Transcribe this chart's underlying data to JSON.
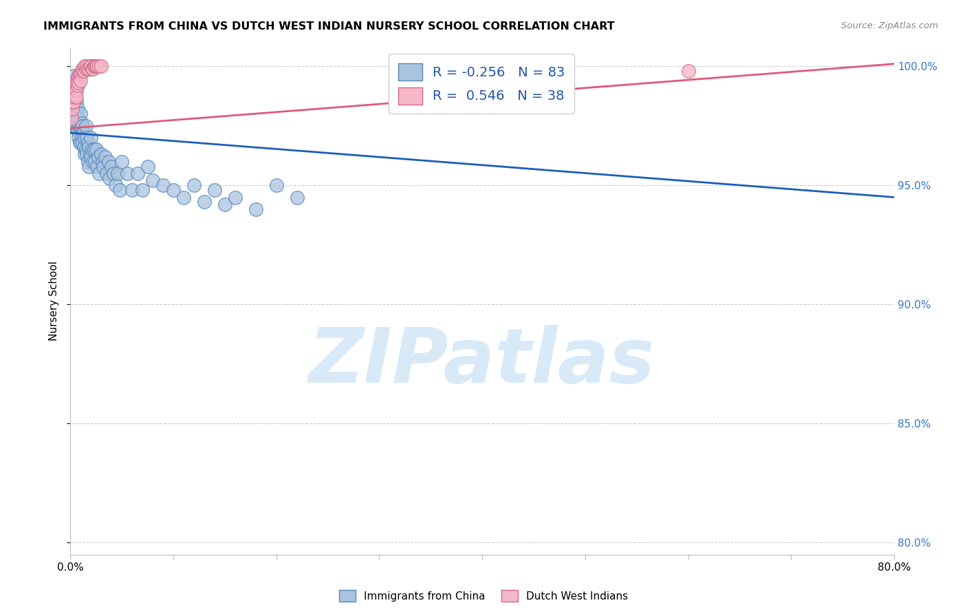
{
  "title": "IMMIGRANTS FROM CHINA VS DUTCH WEST INDIAN NURSERY SCHOOL CORRELATION CHART",
  "source": "Source: ZipAtlas.com",
  "ylabel": "Nursery School",
  "legend_bottom": [
    "Immigrants from China",
    "Dutch West Indians"
  ],
  "blue_R": -0.256,
  "blue_N": 83,
  "pink_R": 0.546,
  "pink_N": 38,
  "xlim": [
    0.0,
    0.8
  ],
  "ylim": [
    0.795,
    1.008
  ],
  "yticks": [
    0.8,
    0.85,
    0.9,
    0.95,
    1.0
  ],
  "xtick_positions": [
    0.0,
    0.1,
    0.2,
    0.3,
    0.4,
    0.5,
    0.6,
    0.7,
    0.8
  ],
  "xtick_labels": [
    "0.0%",
    "",
    "",
    "",
    "",
    "",
    "",
    "",
    "80.0%"
  ],
  "blue_color": "#aac4e0",
  "blue_edge": "#5588bb",
  "pink_color": "#f5b8c8",
  "pink_edge": "#d06888",
  "blue_line_color": "#1a5fba",
  "pink_line_color": "#e05878",
  "watermark": "ZIPatlas",
  "watermark_color": "#d8eaf8",
  "blue_line_x0": 0.0,
  "blue_line_x1": 0.8,
  "blue_line_y0": 0.972,
  "blue_line_y1": 0.945,
  "pink_line_x0": 0.0,
  "pink_line_x1": 0.8,
  "pink_line_y0": 0.974,
  "pink_line_y1": 1.001,
  "blue_scatter_x": [
    0.001,
    0.002,
    0.002,
    0.003,
    0.003,
    0.003,
    0.004,
    0.004,
    0.004,
    0.005,
    0.005,
    0.005,
    0.006,
    0.006,
    0.006,
    0.007,
    0.007,
    0.007,
    0.008,
    0.008,
    0.008,
    0.009,
    0.009,
    0.01,
    0.01,
    0.01,
    0.011,
    0.011,
    0.012,
    0.012,
    0.013,
    0.013,
    0.014,
    0.014,
    0.015,
    0.015,
    0.016,
    0.016,
    0.017,
    0.017,
    0.018,
    0.018,
    0.019,
    0.02,
    0.02,
    0.021,
    0.022,
    0.023,
    0.024,
    0.025,
    0.026,
    0.027,
    0.028,
    0.03,
    0.031,
    0.032,
    0.034,
    0.035,
    0.037,
    0.038,
    0.04,
    0.042,
    0.044,
    0.046,
    0.048,
    0.05,
    0.055,
    0.06,
    0.065,
    0.07,
    0.075,
    0.08,
    0.09,
    0.1,
    0.11,
    0.12,
    0.13,
    0.14,
    0.15,
    0.16,
    0.18,
    0.2,
    0.22
  ],
  "blue_scatter_y": [
    0.99,
    0.988,
    0.985,
    0.996,
    0.993,
    0.99,
    0.98,
    0.978,
    0.976,
    0.99,
    0.986,
    0.975,
    0.985,
    0.98,
    0.975,
    0.982,
    0.978,
    0.973,
    0.978,
    0.975,
    0.97,
    0.975,
    0.968,
    0.98,
    0.975,
    0.968,
    0.976,
    0.97,
    0.975,
    0.968,
    0.972,
    0.966,
    0.97,
    0.963,
    0.975,
    0.965,
    0.97,
    0.963,
    0.968,
    0.96,
    0.966,
    0.958,
    0.963,
    0.97,
    0.962,
    0.965,
    0.96,
    0.965,
    0.96,
    0.965,
    0.958,
    0.962,
    0.955,
    0.963,
    0.96,
    0.958,
    0.962,
    0.955,
    0.96,
    0.953,
    0.958,
    0.955,
    0.95,
    0.955,
    0.948,
    0.96,
    0.955,
    0.948,
    0.955,
    0.948,
    0.958,
    0.952,
    0.95,
    0.948,
    0.945,
    0.95,
    0.943,
    0.948,
    0.942,
    0.945,
    0.94,
    0.95,
    0.945
  ],
  "pink_scatter_x": [
    0.001,
    0.002,
    0.002,
    0.003,
    0.003,
    0.004,
    0.004,
    0.005,
    0.005,
    0.006,
    0.006,
    0.006,
    0.007,
    0.007,
    0.008,
    0.008,
    0.009,
    0.01,
    0.01,
    0.011,
    0.012,
    0.013,
    0.014,
    0.015,
    0.016,
    0.017,
    0.018,
    0.019,
    0.02,
    0.021,
    0.022,
    0.023,
    0.024,
    0.025,
    0.026,
    0.028,
    0.03,
    0.6
  ],
  "pink_scatter_y": [
    0.978,
    0.982,
    0.985,
    0.988,
    0.985,
    0.99,
    0.987,
    0.992,
    0.988,
    0.993,
    0.99,
    0.987,
    0.995,
    0.992,
    0.996,
    0.993,
    0.997,
    0.997,
    0.994,
    0.998,
    0.999,
    0.998,
    1.0,
    0.999,
    1.0,
    0.999,
    0.999,
    1.0,
    1.0,
    0.999,
    0.999,
    1.0,
    1.0,
    1.0,
    1.0,
    1.0,
    1.0,
    0.998
  ]
}
